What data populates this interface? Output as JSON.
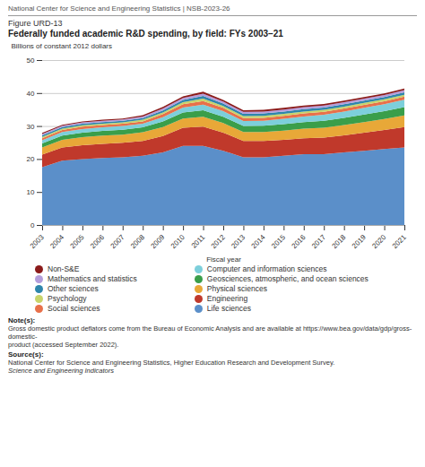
{
  "chart_data": {
    "type": "area",
    "stacked": true,
    "header": "National Center for Science and Engineering Statistics  |  NSB-2023-26",
    "figure_label": "Figure URD-13",
    "title": "Federally funded academic R&D spending, by field: FYs 2003–21",
    "xlabel": "Fiscal year",
    "ylabel": "Billions of constant 2012 dollars",
    "x": [
      2003,
      2004,
      2005,
      2006,
      2007,
      2008,
      2009,
      2010,
      2011,
      2012,
      2013,
      2014,
      2015,
      2016,
      2017,
      2018,
      2019,
      2020,
      2021
    ],
    "xlim": [
      2003,
      2021
    ],
    "xticks": [
      2003,
      2004,
      2005,
      2006,
      2007,
      2008,
      2009,
      2010,
      2011,
      2012,
      2013,
      2014,
      2015,
      2016,
      2017,
      2018,
      2019,
      2020,
      2021
    ],
    "ylim": [
      0,
      50
    ],
    "yticks": [
      0,
      10,
      20,
      30,
      40,
      50
    ],
    "grid": true,
    "legend": "bottom",
    "series": [
      {
        "name": "Life sciences",
        "color": "#5b8fc9",
        "values": [
          17.5,
          19.5,
          20.0,
          20.3,
          20.5,
          21.0,
          22.0,
          24.0,
          24.0,
          22.5,
          20.5,
          20.5,
          21.0,
          21.5,
          21.5,
          22.0,
          22.5,
          23.0,
          23.5
        ]
      },
      {
        "name": "Engineering",
        "color": "#c0392b",
        "values": [
          3.8,
          4.0,
          4.2,
          4.3,
          4.4,
          4.5,
          5.0,
          5.5,
          5.8,
          5.5,
          5.0,
          5.0,
          4.8,
          4.8,
          5.0,
          5.2,
          5.5,
          5.8,
          6.2
        ]
      },
      {
        "name": "Physical sciences",
        "color": "#e8a838",
        "values": [
          2.2,
          2.3,
          2.4,
          2.5,
          2.5,
          2.6,
          2.7,
          2.8,
          3.0,
          2.9,
          2.7,
          2.7,
          2.8,
          2.9,
          3.0,
          3.1,
          3.2,
          3.3,
          3.5
        ]
      },
      {
        "name": "Geosciences, atmospheric, and ocean sciences",
        "color": "#3a9e4a",
        "values": [
          1.2,
          1.3,
          1.4,
          1.4,
          1.5,
          1.5,
          1.7,
          1.8,
          2.0,
          1.9,
          1.8,
          1.9,
          2.0,
          2.0,
          2.1,
          2.2,
          2.3,
          2.4,
          2.5
        ]
      },
      {
        "name": "Computer and information sciences",
        "color": "#7dcfdb",
        "values": [
          1.0,
          1.1,
          1.1,
          1.1,
          1.1,
          1.1,
          1.3,
          1.5,
          1.7,
          1.7,
          1.5,
          1.5,
          1.6,
          1.7,
          1.8,
          1.9,
          2.0,
          2.1,
          2.3
        ]
      },
      {
        "name": "Social sciences",
        "color": "#e8704a",
        "values": [
          0.6,
          0.6,
          0.7,
          0.7,
          0.7,
          0.7,
          0.9,
          1.0,
          1.1,
          1.0,
          0.9,
          0.9,
          0.9,
          0.9,
          0.9,
          0.9,
          0.9,
          0.9,
          0.9
        ]
      },
      {
        "name": "Psychology",
        "color": "#c8d46a",
        "values": [
          0.4,
          0.4,
          0.4,
          0.4,
          0.4,
          0.5,
          0.5,
          0.6,
          0.7,
          0.6,
          0.6,
          0.6,
          0.6,
          0.6,
          0.6,
          0.6,
          0.6,
          0.6,
          0.6
        ]
      },
      {
        "name": "Other sciences",
        "color": "#2e86ab",
        "values": [
          0.5,
          0.5,
          0.5,
          0.5,
          0.5,
          0.5,
          0.6,
          0.7,
          0.8,
          0.7,
          0.7,
          0.7,
          0.7,
          0.7,
          0.7,
          0.7,
          0.7,
          0.7,
          0.7
        ]
      },
      {
        "name": "Mathematics and statistics",
        "color": "#b39ddb",
        "values": [
          0.4,
          0.4,
          0.4,
          0.4,
          0.4,
          0.5,
          0.6,
          0.6,
          0.7,
          0.6,
          0.6,
          0.6,
          0.6,
          0.6,
          0.6,
          0.6,
          0.6,
          0.6,
          0.7
        ]
      },
      {
        "name": "Non-S&E",
        "color": "#8b1a1a",
        "values": [
          0.3,
          0.3,
          0.3,
          0.3,
          0.3,
          0.4,
          0.5,
          0.5,
          0.6,
          0.5,
          0.5,
          0.5,
          0.5,
          0.5,
          0.5,
          0.5,
          0.5,
          0.5,
          0.5
        ]
      }
    ],
    "note_label": "Note(s):",
    "note": "Gross domestic product deflators come from the Bureau of Economic Analysis and are available at https://www.bea.gov/data/gdp/gross-domestic-\nproduct (accessed September 2022).",
    "source_label": "Source(s):",
    "source": "National Center for Science and Engineering Statistics, Higher Education Research and Development Survey.",
    "source_title": "Science and Engineering Indicators"
  }
}
